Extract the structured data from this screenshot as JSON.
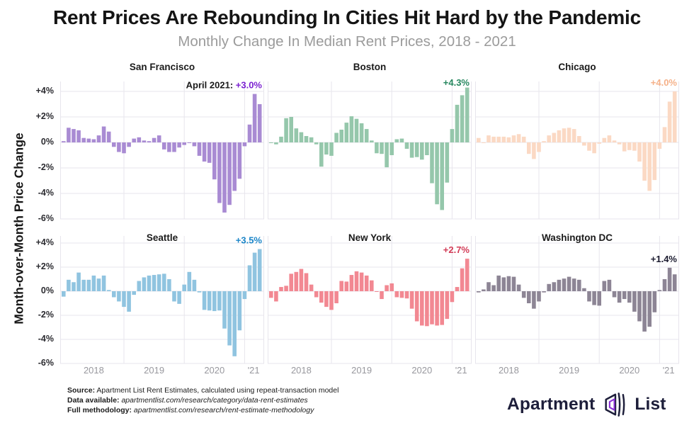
{
  "header": {
    "title": "Rent Prices Are Rebounding In Cities Hit Hard by the Pandemic",
    "subtitle": "Monthly Change In Median Rent Prices, 2018 - 2021"
  },
  "axis": {
    "ylabel": "Month-over-Month Price Change",
    "yticks": [
      "+4%",
      "+2%",
      "0%",
      "-2%",
      "-4%",
      "-6%"
    ],
    "ytick_values": [
      4,
      2,
      0,
      -2,
      -4,
      -6
    ],
    "xticks": [
      "2018",
      "2019",
      "2020",
      "'21"
    ],
    "ylim": [
      -6,
      4
    ]
  },
  "chart_data": {
    "type": "bar",
    "x_unit": "month",
    "x_range": "Jan 2018 - Apr 2021",
    "months_per_chart": 40,
    "year_start_indices": [
      0,
      12,
      24,
      36
    ],
    "grid": true,
    "charts": [
      {
        "city": "San Francisco",
        "bar_color": "#a98bd3",
        "annotation_prefix": "April 2021: ",
        "annotation_value": "+3.0%",
        "annotation_color": "#7a1fd1",
        "values": [
          0.1,
          1.15,
          1.05,
          0.95,
          0.35,
          0.3,
          0.25,
          0.55,
          1.25,
          0.85,
          -0.35,
          -0.75,
          -0.85,
          -0.35,
          0.3,
          0.4,
          0.15,
          0.1,
          0.35,
          0.55,
          -0.55,
          -0.75,
          -0.75,
          -0.4,
          -0.2,
          -0.05,
          -0.3,
          -1.05,
          -1.5,
          -1.6,
          -2.9,
          -4.75,
          -5.5,
          -4.9,
          -3.8,
          -2.85,
          -0.3,
          1.4,
          3.8,
          3.0
        ]
      },
      {
        "city": "Boston",
        "bar_color": "#95c7ab",
        "annotation_prefix": "",
        "annotation_value": "+4.3%",
        "annotation_color": "#27875f",
        "values": [
          -0.05,
          -0.15,
          0.45,
          1.9,
          2.0,
          1.1,
          0.8,
          0.5,
          0.4,
          -0.15,
          -1.9,
          -0.95,
          -1.05,
          0.75,
          1.0,
          1.55,
          2.05,
          1.85,
          1.5,
          1.05,
          0.15,
          -0.85,
          -0.9,
          -1.95,
          -1.0,
          0.25,
          0.3,
          -0.5,
          -1.2,
          -1.15,
          -1.35,
          -1.0,
          -3.2,
          -4.85,
          -5.3,
          -3.15,
          1.05,
          2.95,
          3.7,
          4.3
        ]
      },
      {
        "city": "Chicago",
        "bar_color": "#fbd9c4",
        "annotation_prefix": "",
        "annotation_value": "+4.0%",
        "annotation_color": "#f5b189",
        "values": [
          0.35,
          -0.05,
          0.55,
          0.45,
          0.45,
          0.45,
          0.4,
          0.55,
          0.65,
          0.45,
          -0.9,
          -1.3,
          -0.75,
          0.1,
          0.55,
          0.75,
          0.95,
          1.1,
          1.15,
          1.05,
          0.5,
          -0.25,
          -0.65,
          -0.85,
          -0.1,
          0.35,
          0.55,
          0.15,
          -0.15,
          -0.7,
          -0.6,
          -0.65,
          -1.5,
          -3.0,
          -3.8,
          -2.95,
          -0.5,
          1.2,
          3.2,
          4.0
        ]
      },
      {
        "city": "Seattle",
        "bar_color": "#90c4e0",
        "annotation_prefix": "",
        "annotation_value": "+3.5%",
        "annotation_color": "#1a85c8",
        "values": [
          -0.45,
          0.95,
          0.75,
          1.55,
          0.95,
          0.95,
          1.3,
          1.05,
          1.3,
          0.1,
          -0.5,
          -0.85,
          -1.3,
          -1.7,
          -0.3,
          0.85,
          1.15,
          1.3,
          1.35,
          1.4,
          1.45,
          1.0,
          -0.85,
          -1.05,
          0.55,
          1.6,
          0.95,
          -0.1,
          -1.55,
          -1.6,
          -1.65,
          -1.6,
          -3.1,
          -4.5,
          -5.4,
          -3.25,
          -0.65,
          2.15,
          3.2,
          3.5
        ]
      },
      {
        "city": "New York",
        "bar_color": "#f28892",
        "annotation_prefix": "",
        "annotation_value": "+2.7%",
        "annotation_color": "#d23b56",
        "values": [
          -0.55,
          -0.85,
          0.35,
          0.45,
          1.45,
          1.6,
          1.85,
          1.5,
          0.55,
          -0.5,
          -0.95,
          -1.3,
          -1.55,
          -1.0,
          0.85,
          0.8,
          1.35,
          1.65,
          1.55,
          1.3,
          0.9,
          -0.05,
          -0.65,
          0.5,
          0.65,
          -0.5,
          -0.55,
          -0.6,
          -1.45,
          -2.5,
          -2.85,
          -2.9,
          -2.75,
          -2.85,
          -2.8,
          -2.3,
          -0.9,
          0.35,
          1.9,
          2.7
        ]
      },
      {
        "city": "Washington DC",
        "bar_color": "#8d8595",
        "annotation_prefix": "",
        "annotation_value": "+1.4%",
        "annotation_color": "#1b1b2f",
        "values": [
          -0.1,
          0.15,
          0.75,
          0.5,
          1.3,
          1.15,
          1.25,
          1.2,
          0.55,
          -0.55,
          -1.0,
          -1.45,
          -0.85,
          -0.1,
          0.6,
          0.75,
          0.95,
          1.05,
          1.2,
          1.05,
          0.95,
          0.25,
          -0.85,
          -1.15,
          -1.2,
          0.85,
          0.95,
          -0.5,
          -0.95,
          -0.65,
          -0.95,
          -1.7,
          -2.5,
          -3.35,
          -2.95,
          -1.75,
          0.1,
          1.0,
          1.95,
          1.4
        ]
      }
    ]
  },
  "footer": {
    "source_label": "Source:",
    "source_text": " Apartment List Rent Estimates, calculated using repeat-transaction model",
    "data_label": "Data available:",
    "data_text": " apartmentlist.com/research/category/data-rent-estimates",
    "method_label": "Full methodology:",
    "method_text": " apartmentlist.com/research/rent-estimate-methodology"
  },
  "logo": {
    "word1": "Apartment",
    "word2": "List",
    "text_color": "#1d1e3a",
    "accent_color": "#8b2fd6"
  },
  "colors": {
    "gridline": "#e7e5ec",
    "axis_text": "#2b2b30",
    "year_text": "#98989e"
  }
}
